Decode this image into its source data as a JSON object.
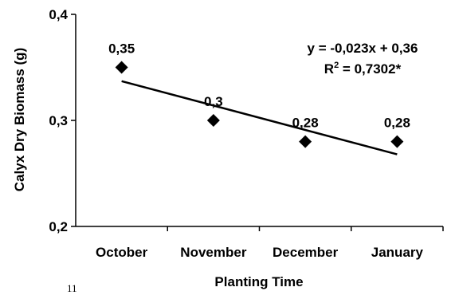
{
  "chart_data": {
    "type": "scatter",
    "categories": [
      "October",
      "November",
      "December",
      "January"
    ],
    "x": [
      1,
      2,
      3,
      4
    ],
    "values": [
      0.35,
      0.3,
      0.28,
      0.28
    ],
    "data_labels": [
      "0,35",
      "0,3",
      "0,28",
      "0,28"
    ],
    "xlabel": "Planting Time",
    "ylabel": "Calyx Dry Biomass (g)",
    "ylim": [
      0.2,
      0.4
    ],
    "yticks": [
      0.2,
      0.3,
      0.4
    ],
    "ytick_labels": [
      "0,2",
      "0,3",
      "0,4"
    ],
    "grid": false,
    "marker": "diamond",
    "marker_color": "#000000",
    "trendline": {
      "type": "linear",
      "slope": -0.023,
      "intercept": 0.36,
      "equation": "y = -0,023x + 0,36",
      "r2_label": "R",
      "r2_sup": "2",
      "r2_value": " = 0,7302*"
    }
  },
  "stray_text": "11"
}
